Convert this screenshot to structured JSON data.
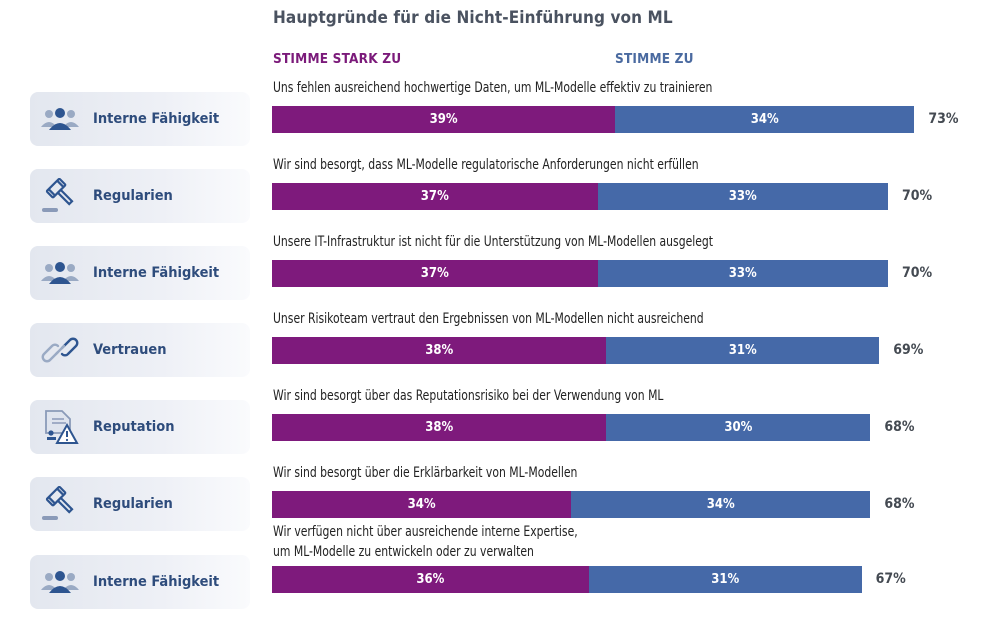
{
  "chart_data": {
    "type": "bar",
    "orientation": "horizontal",
    "stacked": true,
    "title": "Hauptgründe für die Nicht-Einführung von ML",
    "legend": [
      {
        "name": "STIMME STARK ZU",
        "color": "#7e1a7c"
      },
      {
        "name": "STIMME ZU",
        "color": "#4569a8"
      }
    ],
    "legend_placement": "top",
    "xlim": [
      0,
      100
    ],
    "grid": false,
    "rows": [
      {
        "category": "Interne Fähigkeit",
        "icon": "people-icon",
        "statement": "Uns fehlen ausreichend hochwertige Daten, um ML-Modelle effektiv zu trainieren",
        "strong": 39,
        "agree": 34,
        "total": 73,
        "strong_label": "39%",
        "agree_label": "34%",
        "total_label": "73%"
      },
      {
        "category": "Regularien",
        "icon": "gavel-icon",
        "statement": "Wir sind besorgt, dass ML-Modelle regulatorische Anforderungen nicht erfüllen",
        "strong": 37,
        "agree": 33,
        "total": 70,
        "strong_label": "37%",
        "agree_label": "33%",
        "total_label": "70%"
      },
      {
        "category": "Interne Fähigkeit",
        "icon": "people-icon",
        "statement": "Unsere IT-Infrastruktur ist nicht für die Unterstützung von ML-Modellen ausgelegt",
        "strong": 37,
        "agree": 33,
        "total": 70,
        "strong_label": "37%",
        "agree_label": "33%",
        "total_label": "70%"
      },
      {
        "category": "Vertrauen",
        "icon": "link-icon",
        "statement": "Unser Risikoteam vertraut den Ergebnissen von ML-Modellen nicht ausreichend",
        "strong": 38,
        "agree": 31,
        "total": 69,
        "strong_label": "38%",
        "agree_label": "31%",
        "total_label": "69%"
      },
      {
        "category": "Reputation",
        "icon": "document-warning-icon",
        "statement": "Wir sind besorgt über das Reputationsrisiko bei der Verwendung von ML",
        "strong": 38,
        "agree": 30,
        "total": 68,
        "strong_label": "38%",
        "agree_label": "30%",
        "total_label": "68%"
      },
      {
        "category": "Regularien",
        "icon": "gavel-icon",
        "statement": "Wir sind besorgt über die Erklärbarkeit von ML-Modellen",
        "strong": 34,
        "agree": 34,
        "total": 68,
        "strong_label": "34%",
        "agree_label": "34%",
        "total_label": "68%"
      },
      {
        "category": "Interne Fähigkeit",
        "icon": "people-icon",
        "statement": "Wir verfügen nicht über ausreichende interne Expertise,",
        "statement_line2": "um ML-Modelle zu entwickeln oder zu verwalten",
        "strong": 36,
        "agree": 31,
        "total": 67,
        "strong_label": "36%",
        "agree_label": "31%",
        "total_label": "67%"
      }
    ]
  }
}
